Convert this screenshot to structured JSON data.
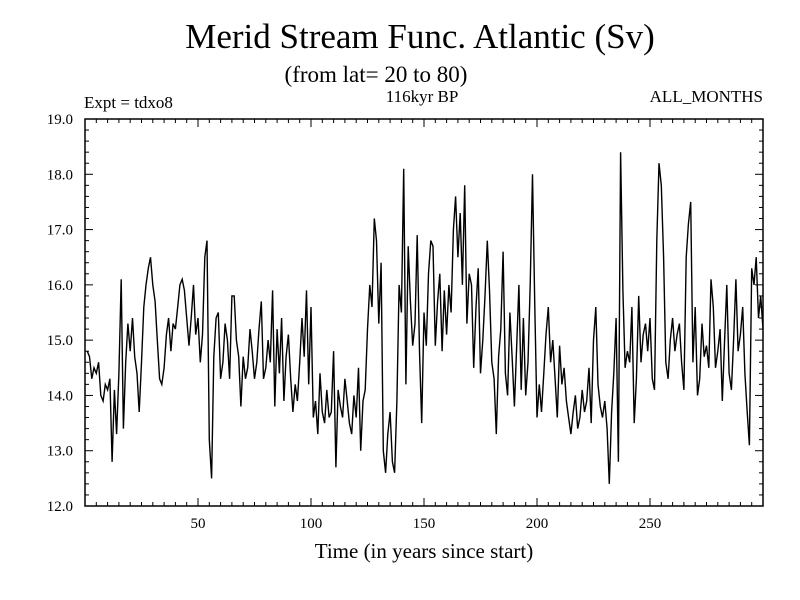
{
  "chart_data": {
    "type": "line",
    "title": "Merid Stream Func. Atlantic (Sv)",
    "subtitle": "(from lat= 20 to 80)",
    "annotation_left": "Expt = tdxo8",
    "annotation_center": "116kyr BP",
    "annotation_right": "ALL_MONTHS",
    "xlabel": "Time (in years since start)",
    "ylabel": "",
    "xlim": [
      0,
      300
    ],
    "ylim": [
      12.0,
      19.0
    ],
    "xticks": [
      50,
      100,
      150,
      200,
      250
    ],
    "xtick_labels": [
      "50",
      "100",
      "150",
      "200",
      "250"
    ],
    "yticks": [
      12.0,
      13.0,
      14.0,
      15.0,
      16.0,
      17.0,
      18.0,
      19.0
    ],
    "ytick_labels": [
      "12.0",
      "13.0",
      "14.0",
      "15.0",
      "16.0",
      "17.0",
      "18.0",
      "19.0"
    ],
    "series": [
      {
        "name": "Merid Stream Func. Atlantic",
        "x_start": 1,
        "x_step": 1,
        "values": [
          14.8,
          14.7,
          14.3,
          14.5,
          14.4,
          14.6,
          14.0,
          13.9,
          14.2,
          14.1,
          14.3,
          12.8,
          14.1,
          13.3,
          14.4,
          16.1,
          13.4,
          14.6,
          15.3,
          14.8,
          15.4,
          14.7,
          14.4,
          13.7,
          14.6,
          15.6,
          16.0,
          16.3,
          16.5,
          16.0,
          15.7,
          15.0,
          14.3,
          14.2,
          14.5,
          15.1,
          15.4,
          14.8,
          15.3,
          15.2,
          15.6,
          16.0,
          16.1,
          15.9,
          15.4,
          14.9,
          15.4,
          16.0,
          15.1,
          15.4,
          14.6,
          15.1,
          16.5,
          16.8,
          13.2,
          12.5,
          14.7,
          15.4,
          15.5,
          14.3,
          14.6,
          15.3,
          15.0,
          14.3,
          15.8,
          15.8,
          15.0,
          14.7,
          13.8,
          14.7,
          14.3,
          14.5,
          15.2,
          14.8,
          14.3,
          14.6,
          15.2,
          15.7,
          14.3,
          14.5,
          15.0,
          14.6,
          15.9,
          13.8,
          15.2,
          14.4,
          15.4,
          13.9,
          14.7,
          15.1,
          14.3,
          13.7,
          14.2,
          13.9,
          14.6,
          15.4,
          14.7,
          15.9,
          14.2,
          15.6,
          13.6,
          13.9,
          13.3,
          14.4,
          13.7,
          13.5,
          14.1,
          13.6,
          13.7,
          14.8,
          12.7,
          14.1,
          13.8,
          13.6,
          14.3,
          13.9,
          13.5,
          13.3,
          14.0,
          13.6,
          14.5,
          13.0,
          13.9,
          14.1,
          15.2,
          16.0,
          15.6,
          17.2,
          16.8,
          15.3,
          16.4,
          13.0,
          12.6,
          13.3,
          13.7,
          12.8,
          12.6,
          13.9,
          16.0,
          15.5,
          18.1,
          14.2,
          16.7,
          15.7,
          14.9,
          15.3,
          16.9,
          14.8,
          13.5,
          15.5,
          14.9,
          16.2,
          16.8,
          16.7,
          14.9,
          15.7,
          16.2,
          14.8,
          15.9,
          15.1,
          16.0,
          15.5,
          17.0,
          17.6,
          16.5,
          17.3,
          16.0,
          17.8,
          15.3,
          16.2,
          16.0,
          14.5,
          15.6,
          16.3,
          14.4,
          15.0,
          15.8,
          16.8,
          15.9,
          14.6,
          14.3,
          13.3,
          14.7,
          15.2,
          16.6,
          14.4,
          14.0,
          15.5,
          14.7,
          13.8,
          14.9,
          16.0,
          14.1,
          15.4,
          14.0,
          14.6,
          16.0,
          18.0,
          15.7,
          13.6,
          14.2,
          13.7,
          14.4,
          15.1,
          15.6,
          14.6,
          15.0,
          14.3,
          13.6,
          14.9,
          14.2,
          14.5,
          13.9,
          13.6,
          13.3,
          13.7,
          14.0,
          13.4,
          13.6,
          14.1,
          13.7,
          13.9,
          14.5,
          13.5,
          15.0,
          15.6,
          14.2,
          13.8,
          13.6,
          13.9,
          13.4,
          12.4,
          13.7,
          14.4,
          15.4,
          12.8,
          18.4,
          15.9,
          14.5,
          14.8,
          14.6,
          15.6,
          13.5,
          14.3,
          15.8,
          14.6,
          15.1,
          15.3,
          14.8,
          15.4,
          14.3,
          14.1,
          16.8,
          18.2,
          17.8,
          16.5,
          14.6,
          14.3,
          15.0,
          15.4,
          14.8,
          15.1,
          15.3,
          14.6,
          14.1,
          16.5,
          17.1,
          17.5,
          14.6,
          15.6,
          14.0,
          14.3,
          15.3,
          14.7,
          14.9,
          14.5,
          16.1,
          15.6,
          14.5,
          14.8,
          15.2,
          13.9,
          15.0,
          16.0,
          14.4,
          14.1,
          15.0,
          16.1,
          14.8,
          15.1,
          15.6,
          14.4,
          13.7,
          13.1,
          16.3,
          16.0,
          16.5,
          15.4,
          15.8,
          15.2
        ]
      }
    ],
    "color": "#000000"
  }
}
